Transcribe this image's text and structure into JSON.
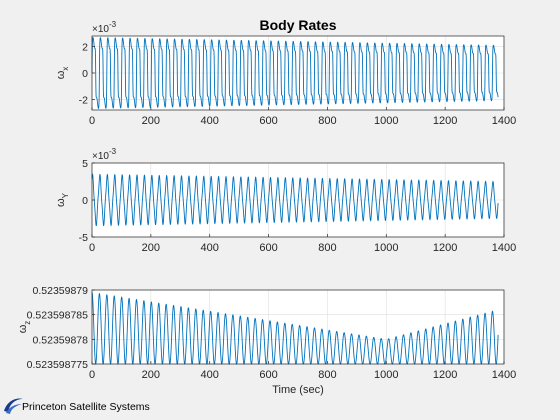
{
  "figure": {
    "title": "Body Rates",
    "colors": {
      "line": "#0072bd",
      "axis": "#262626",
      "grid": "#dfdfdf",
      "background": "#ffffff",
      "figure": "#f0f0f0"
    }
  },
  "logo": {
    "text": "Princeton Satellite Systems",
    "icon": "swoosh-icon"
  },
  "chart_data": [
    {
      "type": "line",
      "title": "Body Rates",
      "ylabel": "ω_x",
      "ylabel_main": "ω",
      "ylabel_sub": "x",
      "exponent": "×10^-3",
      "exponent_base": "×10",
      "exponent_power": "-3",
      "xlabel": "",
      "xlim": [
        0,
        1400
      ],
      "ylim": [
        -0.0028,
        0.0028
      ],
      "xticks": [
        0,
        200,
        400,
        600,
        800,
        1000,
        1200,
        1400
      ],
      "xtick_labels": [
        "0",
        "200",
        "400",
        "600",
        "800",
        "1000",
        "1200",
        "1400"
      ],
      "yticks": [
        -0.002,
        0,
        0.002
      ],
      "ytick_labels": [
        "-2",
        "0",
        "2"
      ],
      "grid": true,
      "series": [
        {
          "x_end": 1380,
          "oscillation_period": 25.2,
          "amplitude_start": 0.0027,
          "amplitude_end": 0.0021,
          "offset": 0
        }
      ]
    },
    {
      "type": "line",
      "title": "",
      "ylabel": "ω_Y",
      "ylabel_main": "ω",
      "ylabel_sub": "Y",
      "exponent": "×10^-3",
      "exponent_base": "×10",
      "exponent_power": "-3",
      "xlabel": "",
      "xlim": [
        0,
        1400
      ],
      "ylim": [
        -0.005,
        0.005
      ],
      "xticks": [
        0,
        200,
        400,
        600,
        800,
        1000,
        1200,
        1400
      ],
      "xtick_labels": [
        "0",
        "200",
        "400",
        "600",
        "800",
        "1000",
        "1200",
        "1400"
      ],
      "yticks": [
        -0.005,
        0,
        0.005
      ],
      "ytick_labels": [
        "-5",
        "0",
        "5"
      ],
      "grid": true,
      "series": [
        {
          "x_end": 1380,
          "oscillation_period": 25.2,
          "amplitude_start": 0.0035,
          "amplitude_end": 0.0025,
          "offset": 0
        }
      ]
    },
    {
      "type": "line",
      "title": "",
      "ylabel": "ω_z",
      "ylabel_main": "ω",
      "ylabel_sub": "z",
      "exponent": "",
      "xlabel": "Time (sec)",
      "xlim": [
        0,
        1400
      ],
      "ylim": [
        0.523598775,
        0.52359879
      ],
      "xticks": [
        0,
        200,
        400,
        600,
        800,
        1000,
        1200,
        1400
      ],
      "xtick_labels": [
        "0",
        "200",
        "400",
        "600",
        "800",
        "1000",
        "1200",
        "1400"
      ],
      "yticks": [
        0.523598775,
        0.52359878,
        0.523598785,
        0.52359879
      ],
      "ytick_labels": [
        "0.523598775",
        "0.52359878",
        "0.523598785",
        "0.52359879"
      ],
      "grid": true,
      "series": [
        {
          "x_end": 1380,
          "oscillation_period": 25.2,
          "upper_start": 0.5235987895,
          "upper_min": 0.52359878,
          "upper_min_at": 1000,
          "upper_end": 0.523598786,
          "lower": 0.523598775
        }
      ]
    }
  ]
}
